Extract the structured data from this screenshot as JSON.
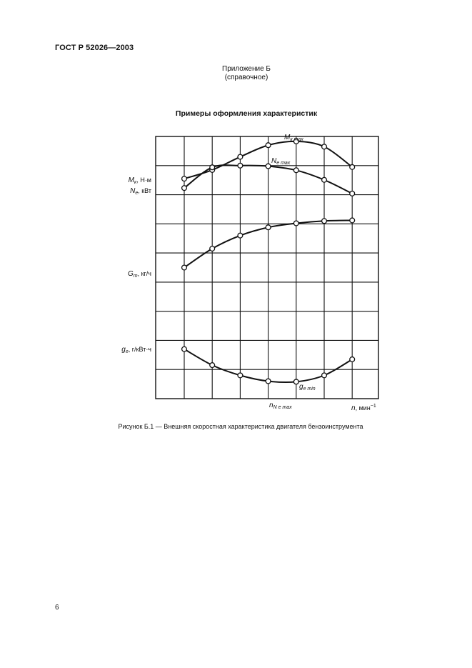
{
  "header": {
    "doc_code": "ГОСТ Р 52026—2003",
    "appendix_title": "Приложение Б",
    "appendix_type": "(справочное)"
  },
  "figure": {
    "heading": "Примеры оформления характеристик",
    "caption": "Рисунок Б.1 — Внешняя скоростная характеристика двигателя бензоинструмента"
  },
  "page_number": "6",
  "chart_data": {
    "type": "line",
    "grid": true,
    "x_ticks": 7,
    "axis_labels": {
      "x": {
        "sym": "n",
        "rest": ", мин",
        "sup": "−1"
      },
      "y_m": {
        "sym": "M",
        "sub": "к",
        "rest": ", Н·м"
      },
      "y_n": {
        "sym": "N",
        "sub": "e",
        "rest": ", кВт"
      },
      "y_g": {
        "sym": "G",
        "sub": "т",
        "rest": ", кг/ч"
      },
      "y_ge": {
        "sym": "g",
        "sub": "e",
        "rest": ", г/кВт·ч"
      }
    },
    "annotations": {
      "mk_max": {
        "sym": "M",
        "sub": "к max"
      },
      "ne_max": {
        "sym": "N",
        "sub": "e max"
      },
      "ge_min": {
        "sym": "g",
        "sub": "e min"
      },
      "n_ne_max": {
        "sym": "n",
        "sub": "N e max"
      }
    },
    "series": [
      {
        "key": "Mk",
        "points": [
          [
            0,
            7.55
          ],
          [
            1,
            7.85
          ],
          [
            2,
            8.3
          ],
          [
            3,
            8.7
          ],
          [
            4,
            8.83
          ],
          [
            5,
            8.65
          ],
          [
            6,
            7.95
          ]
        ]
      },
      {
        "key": "Ne",
        "points": [
          [
            0,
            7.23
          ],
          [
            1,
            7.94
          ],
          [
            2,
            8.0
          ],
          [
            3,
            7.98
          ],
          [
            4,
            7.84
          ],
          [
            5,
            7.51
          ],
          [
            6,
            7.04
          ]
        ]
      },
      {
        "key": "Gt",
        "points": [
          [
            0,
            4.5
          ],
          [
            1,
            5.15
          ],
          [
            2,
            5.6
          ],
          [
            3,
            5.88
          ],
          [
            4,
            6.02
          ],
          [
            5,
            6.1
          ],
          [
            6,
            6.12
          ]
        ]
      },
      {
        "key": "ge",
        "points": [
          [
            0,
            1.7
          ],
          [
            1,
            1.15
          ],
          [
            2,
            0.8
          ],
          [
            3,
            0.6
          ],
          [
            4,
            0.58
          ],
          [
            5,
            0.8
          ],
          [
            6,
            1.35
          ]
        ]
      }
    ],
    "ylim": [
      0,
      9
    ]
  }
}
